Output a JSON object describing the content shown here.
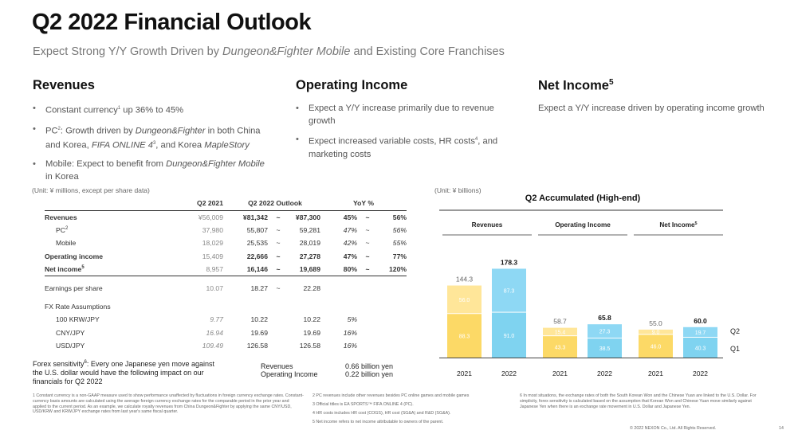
{
  "header": {
    "title": "Q2 2022 Financial Outlook",
    "subtitle_pre": "Expect Strong Y/Y Growth Driven by ",
    "subtitle_em": "Dungeon&Fighter Mobile",
    "subtitle_post": " and Existing Core Franchises"
  },
  "revenues": {
    "heading": "Revenues",
    "b1_a": "Constant currency",
    "b1_sup": "1",
    "b1_b": " up 36% to 45%",
    "b2_a": "PC",
    "b2_sup": "2",
    "b2_b": ": Growth driven by ",
    "b2_em1": "Dungeon&Fighter",
    "b2_c": " in both China and Korea, ",
    "b2_em2": "FIFA ONLINE 4",
    "b2_sup2": "3",
    "b2_d": ", and Korea ",
    "b2_em3": "MapleStory",
    "b3_a": "Mobile: Expect to benefit from ",
    "b3_em": "Dungeon&Fighter Mobile",
    "b3_b": " in Korea"
  },
  "operating": {
    "heading": "Operating Income",
    "b1": "Expect a Y/Y increase primarily due to revenue growth",
    "b2_a": "Expect increased variable costs, HR costs",
    "b2_sup": "4",
    "b2_b": ", and marketing costs"
  },
  "net": {
    "heading": "Net Income",
    "heading_sup": "5",
    "text": "Expect a Y/Y increase driven by operating income growth"
  },
  "table": {
    "unit": "(Unit: ¥ millions, except per share data)",
    "headers": {
      "q2_2021": "Q2 2021",
      "outlook": "Q2 2022 Outlook",
      "yoy": "YoY %"
    },
    "rows": [
      {
        "label": "Revenues",
        "sup": "",
        "q21": "¥56,009",
        "lo": "¥81,342",
        "t1": "~",
        "hi": "¥87,300",
        "yl": "45%",
        "t2": "~",
        "yh": "56%",
        "bold": true,
        "indent": false
      },
      {
        "label": "PC",
        "sup": "2",
        "q21": "37,980",
        "lo": "55,807",
        "t1": "~",
        "hi": "59,281",
        "yl": "47%",
        "t2": "~",
        "yh": "56%",
        "bold": false,
        "indent": true
      },
      {
        "label": "Mobile",
        "sup": "",
        "q21": "18,029",
        "lo": "25,535",
        "t1": "~",
        "hi": "28,019",
        "yl": "42%",
        "t2": "~",
        "yh": "55%",
        "bold": false,
        "indent": true
      },
      {
        "label": "Operating income",
        "sup": "",
        "q21": "15,409",
        "lo": "22,666",
        "t1": "~",
        "hi": "27,278",
        "yl": "47%",
        "t2": "~",
        "yh": "77%",
        "bold": true,
        "indent": false
      },
      {
        "label": "Net income",
        "sup": "5",
        "q21": "8,957",
        "lo": "16,146",
        "t1": "~",
        "hi": "19,689",
        "yl": "80%",
        "t2": "~",
        "yh": "120%",
        "bold": true,
        "indent": false,
        "line": true
      },
      {
        "label": "Earnings per share",
        "sup": "",
        "q21": "10.07",
        "lo": "18.27",
        "t1": "~",
        "hi": "22.28",
        "yl": "",
        "t2": "",
        "yh": "",
        "bold": false,
        "indent": false,
        "gap": true
      },
      {
        "label": "FX Rate Assumptions",
        "sup": "",
        "q21": "",
        "lo": "",
        "t1": "",
        "hi": "",
        "yl": "",
        "t2": "",
        "yh": "",
        "bold": false,
        "indent": false,
        "gap": true
      },
      {
        "label": "100 KRW/JPY",
        "sup": "",
        "q21": "9.77",
        "lo": "10.22",
        "t1": "",
        "hi": "10.22",
        "yl": "5%",
        "t2": "",
        "yh": "",
        "bold": false,
        "indent": true,
        "ital": true
      },
      {
        "label": "CNY/JPY",
        "sup": "",
        "q21": "16.94",
        "lo": "19.69",
        "t1": "",
        "hi": "19.69",
        "yl": "16%",
        "t2": "",
        "yh": "",
        "bold": false,
        "indent": true,
        "ital": true
      },
      {
        "label": "USD/JPY",
        "sup": "",
        "q21": "109.49",
        "lo": "126.58",
        "t1": "",
        "hi": "126.58",
        "yl": "16%",
        "t2": "",
        "yh": "",
        "bold": false,
        "indent": true,
        "ital": true
      }
    ]
  },
  "sensitivity": {
    "text_a": "Forex sensitivity",
    "sup": "6",
    "text_b": ": Every one Japanese yen move against the U.S. dollar would have the following impact on our financials for Q2 2022",
    "rev_label": "Revenues",
    "rev_value": "0.66 billion yen",
    "oi_label": "Operating Income",
    "oi_value": "0.22 billion yen"
  },
  "chart_data": {
    "type": "bar",
    "stacked": true,
    "unit": "(Unit: ¥ billions)",
    "title": "Q2 Accumulated (High-end)",
    "groups": [
      {
        "name": "Revenues",
        "name_sup": "",
        "categories": [
          "2021",
          "2022"
        ],
        "q1": [
          88.3,
          91.0
        ],
        "q2": [
          56.0,
          87.3
        ],
        "totals": [
          "144.3",
          "178.3"
        ],
        "bold_total": [
          false,
          true
        ],
        "q1_labels": [
          "88.3",
          "91.0"
        ],
        "q2_labels": [
          "56.0",
          "87.3"
        ]
      },
      {
        "name": "Operating Income",
        "name_sup": "",
        "categories": [
          "2021",
          "2022"
        ],
        "q1": [
          43.3,
          38.5
        ],
        "q2": [
          15.4,
          27.3
        ],
        "totals": [
          "58.7",
          "65.8"
        ],
        "bold_total": [
          false,
          true
        ],
        "q1_labels": [
          "43.3",
          "38.5"
        ],
        "q2_labels": [
          "15.4",
          "27.3"
        ]
      },
      {
        "name": "Net Income",
        "name_sup": "5",
        "categories": [
          "2021",
          "2022"
        ],
        "q1": [
          46.0,
          40.3
        ],
        "q2": [
          9.0,
          19.7
        ],
        "totals": [
          "55.0",
          "60.0"
        ],
        "bold_total": [
          false,
          true
        ],
        "q1_labels": [
          "46.0",
          "40.3"
        ],
        "q2_labels": [
          "9.0",
          "19.7"
        ]
      }
    ],
    "legend": [
      "Q2",
      "Q1"
    ],
    "colors": {
      "q1_2021": "#FCD966",
      "q2_2021": "#FFE699",
      "q1_2022": "#7FD3F0",
      "q2_2022": "#8ED8F4"
    }
  },
  "footnotes": {
    "f1": "1   Constant currency is a non-GAAP measure used to show performance unaffected by fluctuations in foreign currency exchange rates. Constant-currency basis amounts are calculated using the average foreign currency exchange rates for the comparable period in the prior year and applied to the current period. As an example, we calculate royalty revenues from China Dungeon&Fighter by applying the same CNY/USD, USD/KRW and KRW/JPY exchange rates from last year's same fiscal quarter.",
    "f2": "2   PC revenues include other revenues besides PC online games and mobile games",
    "f3": "3   Official titles is EA SPORTS™ FIFA ONLINE 4 (PC).",
    "f4": "4   HR costs includes HR cost (COGS), HR cost (SG&A) and R&D (SG&A).",
    "f5": "5   Net income refers to net income attributable to owners of the parent.",
    "f6": "6   In most situations, the exchange rates of both the South Korean Won and the Chinese Yuan are linked to the U.S. Dollar. For simplicity, forex sensitivity is calculated based on the assumption that Korean Won and Chinese Yuan move similarly against Japanese Yen when there is an exchange rate movement in U.S. Dollar and Japanese Yen.",
    "copyright": "© 2022 NEXON Co., Ltd. All Rights Reserved.",
    "page": "14"
  }
}
